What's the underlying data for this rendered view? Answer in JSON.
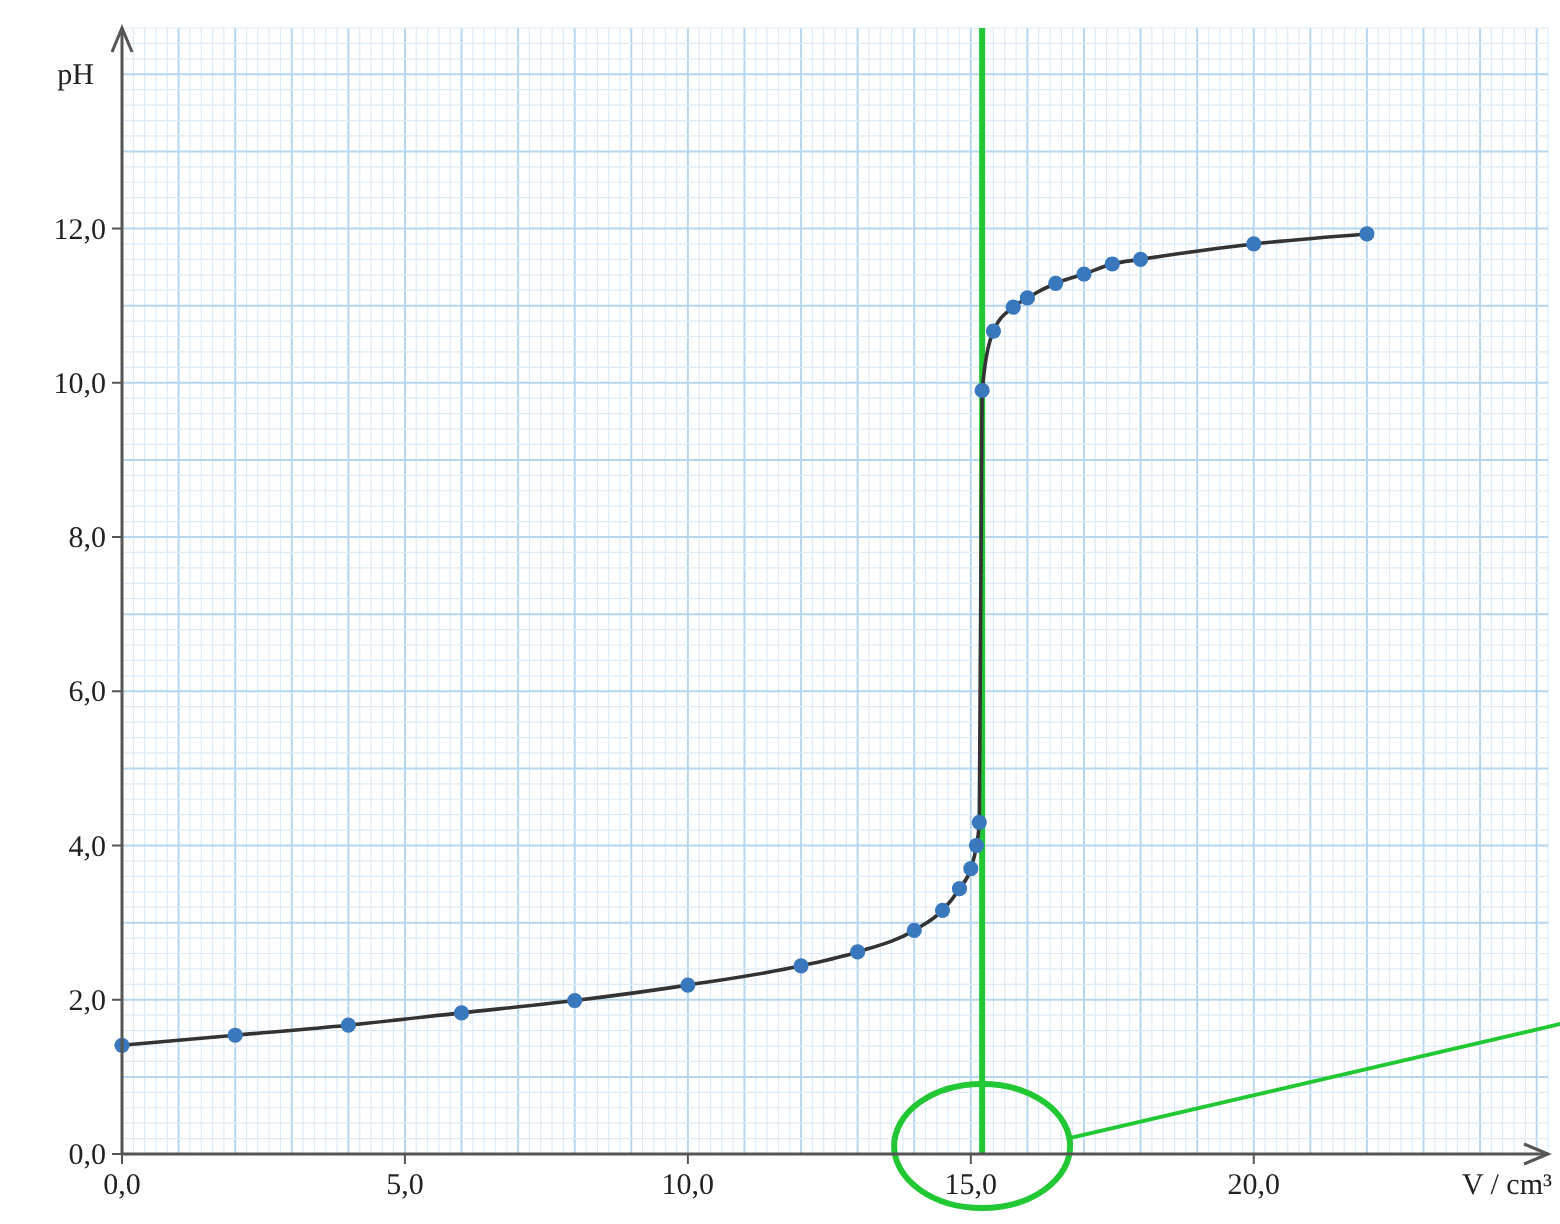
{
  "chart_data": {
    "type": "line",
    "xlabel": "V / cm³",
    "ylabel": "pH",
    "xlim": [
      0,
      25.2
    ],
    "ylim": [
      0,
      14.6
    ],
    "xticks": [
      {
        "value": 0,
        "label": "0,0"
      },
      {
        "value": 5,
        "label": "5,0"
      },
      {
        "value": 10,
        "label": "10,0"
      },
      {
        "value": 15,
        "label": "15,0"
      },
      {
        "value": 20,
        "label": "20,0"
      }
    ],
    "yticks": [
      {
        "value": 0,
        "label": "0,0"
      },
      {
        "value": 2,
        "label": "2,0"
      },
      {
        "value": 4,
        "label": "4,0"
      },
      {
        "value": 6,
        "label": "6,0"
      },
      {
        "value": 8,
        "label": "8,0"
      },
      {
        "value": 10,
        "label": "10,0"
      },
      {
        "value": 12,
        "label": "12,0"
      }
    ],
    "grid": true,
    "x": [
      0,
      2,
      4,
      6,
      8,
      10,
      12,
      13,
      14,
      14.5,
      14.8,
      15.0,
      15.1,
      15.15,
      15.2,
      15.4,
      15.75,
      16.0,
      16.5,
      17.0,
      17.5,
      18.0,
      20.0,
      22.0
    ],
    "series": [
      {
        "type": "line",
        "color": "#333333",
        "marker": "none",
        "values": [
          1.41,
          1.54,
          1.67,
          1.83,
          1.99,
          2.19,
          2.44,
          2.62,
          2.9,
          3.16,
          3.44,
          3.7,
          4.0,
          4.3,
          9.9,
          10.67,
          10.98,
          11.1,
          11.29,
          11.41,
          11.54,
          11.6,
          11.8,
          11.93
        ]
      },
      {
        "type": "scatter",
        "color": "#3a78bd",
        "marker": "circle",
        "values": [
          1.41,
          1.54,
          1.67,
          1.83,
          1.99,
          2.19,
          2.44,
          2.62,
          2.9,
          3.16,
          3.44,
          3.7,
          4.0,
          4.3,
          9.9,
          10.67,
          10.98,
          11.1,
          11.29,
          11.41,
          11.54,
          11.6,
          11.8,
          11.93
        ]
      }
    ],
    "ref_lines": [
      {
        "axis": "x",
        "value": 15.2,
        "color": "#22c833"
      }
    ]
  }
}
